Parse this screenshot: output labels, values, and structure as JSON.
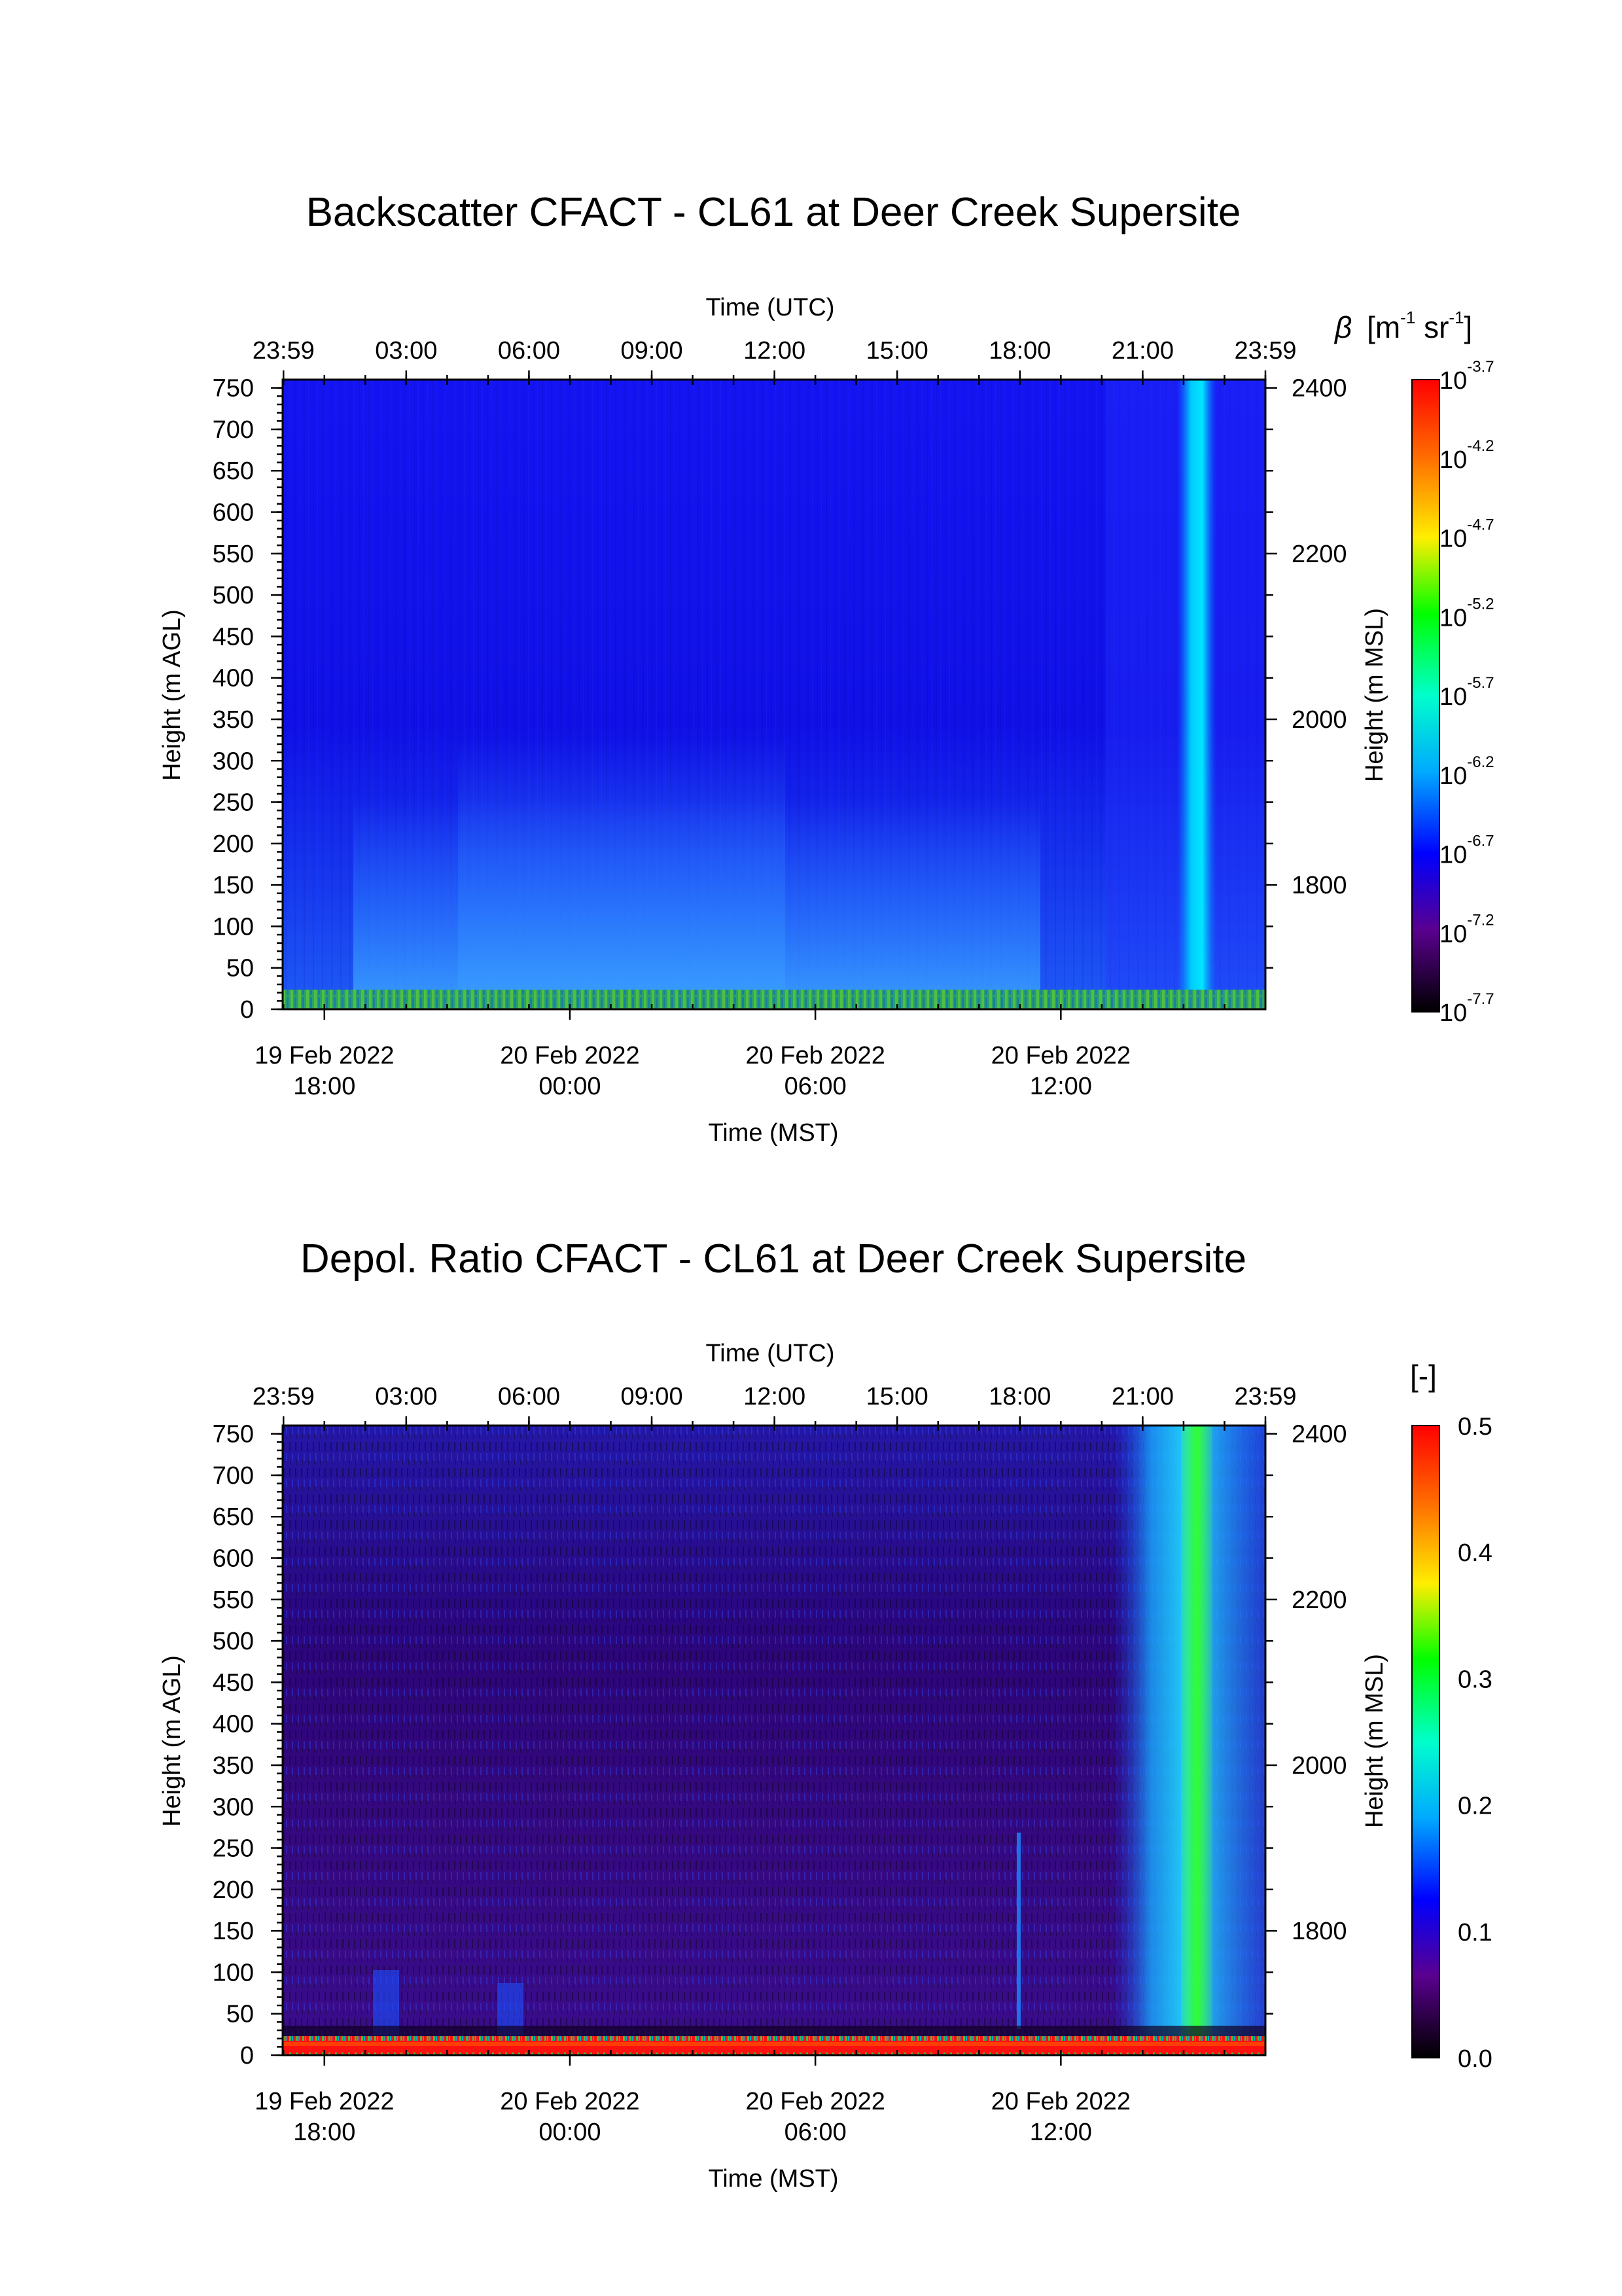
{
  "charts": [
    {
      "id": "backscatter",
      "title": "Backscatter CFACT - CL61 at Deer Creek Supersite",
      "top_axis_label": "Time (UTC)",
      "top_ticks": [
        "23:59",
        "03:00",
        "06:00",
        "09:00",
        "12:00",
        "15:00",
        "18:00",
        "21:00",
        "23:59"
      ],
      "bottom_axis_label": "Time (MST)",
      "bottom_ticks": [
        {
          "date": "19 Feb 2022",
          "time": "18:00"
        },
        {
          "date": "20 Feb 2022",
          "time": "00:00"
        },
        {
          "date": "20 Feb 2022",
          "time": "06:00"
        },
        {
          "date": "20 Feb 2022",
          "time": "12:00"
        }
      ],
      "left_axis_label": "Height (m AGL)",
      "left_ticks": [
        "0",
        "50",
        "100",
        "150",
        "200",
        "250",
        "300",
        "350",
        "400",
        "450",
        "500",
        "550",
        "600",
        "650",
        "700",
        "750"
      ],
      "right_axis_label": "Height (m MSL)",
      "right_ticks": [
        "1800",
        "2000",
        "2200",
        "2400"
      ],
      "colorbar_label": {
        "symbol": "β",
        "unit_text": "[m",
        "exp1": "-1",
        "mid": " sr",
        "exp2": "-1",
        "close": "]"
      },
      "colorbar_ticks": [
        {
          "base": "10",
          "exp": "-3.7"
        },
        {
          "base": "10",
          "exp": "-4.2"
        },
        {
          "base": "10",
          "exp": "-4.7"
        },
        {
          "base": "10",
          "exp": "-5.2"
        },
        {
          "base": "10",
          "exp": "-5.7"
        },
        {
          "base": "10",
          "exp": "-6.2"
        },
        {
          "base": "10",
          "exp": "-6.7"
        },
        {
          "base": "10",
          "exp": "-7.2"
        },
        {
          "base": "10",
          "exp": "-7.7"
        }
      ]
    },
    {
      "id": "depol",
      "title": "Depol. Ratio CFACT - CL61 at Deer Creek Supersite",
      "top_axis_label": "Time (UTC)",
      "top_ticks": [
        "23:59",
        "03:00",
        "06:00",
        "09:00",
        "12:00",
        "15:00",
        "18:00",
        "21:00",
        "23:59"
      ],
      "bottom_axis_label": "Time (MST)",
      "bottom_ticks": [
        {
          "date": "19 Feb 2022",
          "time": "18:00"
        },
        {
          "date": "20 Feb 2022",
          "time": "00:00"
        },
        {
          "date": "20 Feb 2022",
          "time": "06:00"
        },
        {
          "date": "20 Feb 2022",
          "time": "12:00"
        }
      ],
      "left_axis_label": "Height (m AGL)",
      "left_ticks": [
        "0",
        "50",
        "100",
        "150",
        "200",
        "250",
        "300",
        "350",
        "400",
        "450",
        "500",
        "550",
        "600",
        "650",
        "700",
        "750"
      ],
      "right_axis_label": "Height (m MSL)",
      "right_ticks": [
        "1800",
        "2000",
        "2200",
        "2400"
      ],
      "colorbar_label_plain": "[-]",
      "colorbar_ticks_plain": [
        "0.5",
        "0.4",
        "0.3",
        "0.2",
        "0.1",
        "0.0"
      ]
    }
  ],
  "chart_data": [
    {
      "type": "heatmap",
      "title": "Backscatter CFACT - CL61 at Deer Creek Supersite",
      "xlabel": "Time (MST)",
      "x2label": "Time (UTC)",
      "ylabel": "Height (m AGL)",
      "y2label": "Height (m MSL)",
      "xlim_utc_hours": [
        -0.02,
        24.0
      ],
      "ylim_agl_m": [
        0,
        760
      ],
      "ylim_msl_m": [
        1650,
        2410
      ],
      "colorbar": {
        "label": "β [m-1 sr-1]",
        "scale": "log",
        "range_log10": [
          -7.7,
          -3.7
        ]
      },
      "features": [
        {
          "description": "near-surface layer",
          "height_agl_m": [
            0,
            20
          ],
          "log10_beta": -5.2
        },
        {
          "description": "enhanced backscatter plumes",
          "height_agl_m": [
            0,
            200
          ],
          "log10_beta": -6.4
        },
        {
          "description": "background",
          "log10_beta": -6.9
        },
        {
          "description": "vertical column",
          "utc_hours": [
            22.5,
            22.8
          ],
          "height_agl_m": [
            20,
            760
          ],
          "log10_beta": -6.2
        }
      ]
    },
    {
      "type": "heatmap",
      "title": "Depol. Ratio CFACT - CL61 at Deer Creek Supersite",
      "xlabel": "Time (MST)",
      "x2label": "Time (UTC)",
      "ylabel": "Height (m AGL)",
      "y2label": "Height (m MSL)",
      "xlim_utc_hours": [
        -0.02,
        24.0
      ],
      "ylim_agl_m": [
        0,
        760
      ],
      "ylim_msl_m": [
        1650,
        2410
      ],
      "colorbar": {
        "label": "[-]",
        "scale": "linear",
        "range": [
          0.0,
          0.5
        ]
      },
      "features": [
        {
          "description": "near-surface layer",
          "height_agl_m": [
            0,
            15
          ],
          "value": 0.5
        },
        {
          "description": "background",
          "value": 0.06
        },
        {
          "description": "upper noisy region",
          "height_agl_m": [
            450,
            760
          ],
          "value": 0.05
        },
        {
          "description": "elevated depol region",
          "utc_hours": [
            20.7,
            24.0
          ],
          "height_agl_m": [
            20,
            760
          ],
          "value": 0.2
        },
        {
          "description": "vertical column",
          "utc_hours": [
            22.5,
            22.8
          ],
          "height_agl_m": [
            20,
            760
          ],
          "value": 0.3
        },
        {
          "description": "thin column",
          "utc_hours": [
            18.1,
            18.2
          ],
          "height_agl_m": [
            20,
            300
          ],
          "value": 0.15
        }
      ]
    }
  ]
}
